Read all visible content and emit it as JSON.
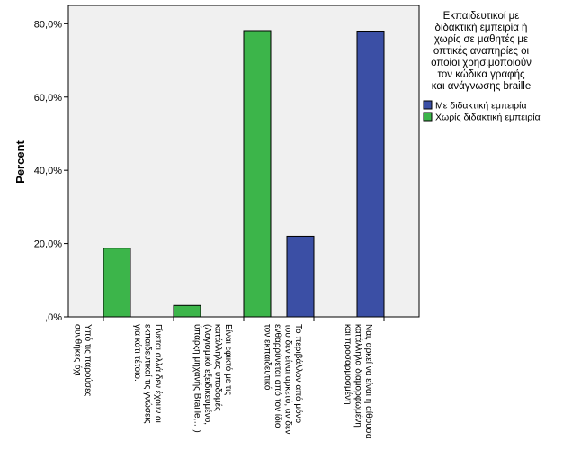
{
  "chart_data": {
    "type": "bar",
    "ylabel": "Percent",
    "ylim": [
      0,
      85
    ],
    "yticks": [
      0,
      20,
      40,
      60,
      80
    ],
    "ytick_labels": [
      ",0%",
      "20,0%",
      "40,0%",
      "60,0%",
      "80,0%"
    ],
    "grid": false,
    "legend_position": "right",
    "legend_title": [
      "Εκπαιδευτικοί με",
      "διδακτική εμπειρία ή",
      "χωρίς σε μαθητές με",
      "οπτικές αναπηρίες οι",
      "οποίοι χρησιμοποιούν",
      "τον κώδικα γραφής",
      "και ανάγνωσης braille"
    ],
    "categories": [
      [
        "Υπό τις παρούσες",
        "συνθήκες όχι"
      ],
      [
        "Γίνεται αλλά δεν έχουν οι",
        "εκπαιδευτικοί τις γνώσεις",
        "για κάτι τέτοιο."
      ],
      [
        "Είναι εφικτό με τις",
        "κατάλληλες υποδομές",
        "(Λογισμικό εξειδικευμένο,",
        "ύπαρξη μηχανής Braille,…)"
      ],
      [
        "Το περιβάλλον από μόνο",
        "του δεν είναι αρκετό, αν δεν",
        "ενθαρρύνεται από τον ίδιο",
        "τον εκπαιδευτικό"
      ],
      [
        "Ναι, αρκεί να είναι η αίθουσα",
        "κατάλληλα διαμορφωμένη",
        "και προσαρμοσμένη"
      ]
    ],
    "series": [
      {
        "name": "Με διδακτική εμπειρία",
        "color": "#3b4fa5",
        "values": [
          0,
          0,
          0,
          22,
          78
        ]
      },
      {
        "name": "Χωρίς διδακτική εμπειρία",
        "color": "#3cb54a",
        "values": [
          18.75,
          3.125,
          78.125,
          0,
          0
        ]
      }
    ]
  }
}
